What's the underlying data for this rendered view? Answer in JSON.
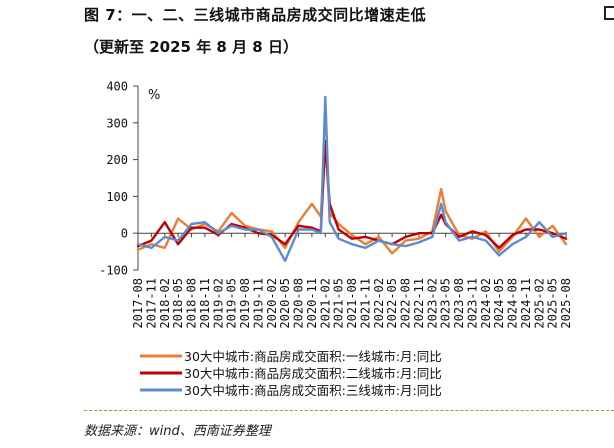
{
  "header": {
    "title": "图 7：一、二、三线城市商品房成交同比增速走低",
    "subtitle": "（更新至 2025 年 8 月 8 日）"
  },
  "footer": {
    "source": "数据来源：wind、西南证券整理"
  },
  "chart_data": {
    "type": "line",
    "ylim": [
      -100,
      400
    ],
    "yticks": [
      -100,
      0,
      100,
      200,
      300,
      400
    ],
    "ytick_labels": [
      "-100",
      "0",
      "100",
      "200",
      "300",
      "400"
    ],
    "yunit": "%",
    "grid": false,
    "legend_position": "bottom",
    "x_tick_labels": [
      "2017-08",
      "2017-11",
      "2018-02",
      "2018-05",
      "2018-08",
      "2018-11",
      "2019-02",
      "2019-05",
      "2019-08",
      "2019-11",
      "2020-02",
      "2020-05",
      "2020-08",
      "2020-11",
      "2021-02",
      "2021-05",
      "2021-08",
      "2021-11",
      "2022-02",
      "2022-05",
      "2022-08",
      "2022-11",
      "2023-02",
      "2023-05",
      "2023-08",
      "2023-11",
      "2024-02",
      "2024-05",
      "2024-08",
      "2024-11",
      "2025-02",
      "2025-05",
      "2025-08"
    ],
    "x": [
      "2017-08",
      "2017-11",
      "2018-02",
      "2018-05",
      "2018-08",
      "2018-11",
      "2019-02",
      "2019-05",
      "2019-08",
      "2019-11",
      "2020-02",
      "2020-05",
      "2020-08",
      "2020-11",
      "2021-01",
      "2021-02",
      "2021-03",
      "2021-05",
      "2021-08",
      "2021-11",
      "2022-02",
      "2022-05",
      "2022-08",
      "2022-11",
      "2023-02",
      "2023-04",
      "2023-05",
      "2023-08",
      "2023-11",
      "2024-02",
      "2024-05",
      "2024-08",
      "2024-11",
      "2025-02",
      "2025-05",
      "2025-08"
    ],
    "series": [
      {
        "name": "30大中城市:商品房成交面积:一线城市:月:同比",
        "color": "#ED7D31",
        "values": [
          -45,
          -30,
          -40,
          40,
          10,
          25,
          5,
          55,
          20,
          10,
          5,
          -40,
          30,
          80,
          45,
          250,
          55,
          25,
          -5,
          -30,
          -10,
          -55,
          -20,
          -15,
          5,
          120,
          60,
          -5,
          -15,
          5,
          -50,
          -10,
          40,
          -10,
          20,
          -30
        ]
      },
      {
        "name": "30大中城市:商品房成交面积:二线城市:月:同比",
        "color": "#C00000",
        "values": [
          -35,
          -20,
          30,
          -30,
          15,
          15,
          -5,
          25,
          15,
          0,
          -5,
          -30,
          20,
          15,
          5,
          250,
          80,
          10,
          -15,
          -10,
          -20,
          -30,
          -10,
          0,
          0,
          50,
          25,
          -10,
          5,
          -5,
          -40,
          -5,
          10,
          10,
          0,
          -15
        ]
      },
      {
        "name": "30大中城市:商品房成交面积:三线城市:月:同比",
        "color": "#5B8BD0",
        "values": [
          -30,
          -40,
          -10,
          -20,
          25,
          30,
          0,
          20,
          10,
          10,
          -10,
          -75,
          10,
          10,
          0,
          370,
          30,
          -15,
          -30,
          -40,
          -20,
          -30,
          -35,
          -25,
          -10,
          80,
          30,
          -20,
          -10,
          -20,
          -60,
          -30,
          -10,
          30,
          -10,
          0
        ]
      }
    ]
  }
}
